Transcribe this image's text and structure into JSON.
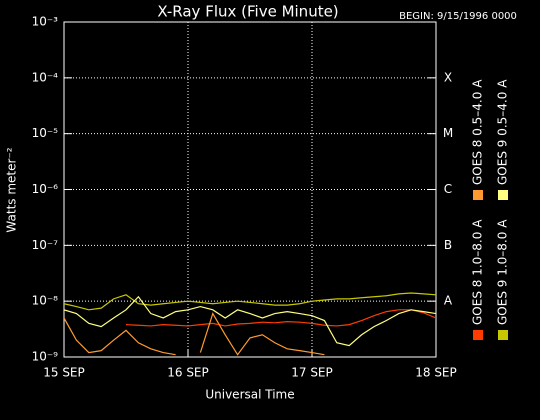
{
  "chart_data": {
    "type": "line",
    "title": "X-Ray Flux (Five Minute)",
    "subtitle": "BEGIN: 9/15/1996 0000",
    "y_label": "Watts meter⁻²",
    "x_label": "Universal Time",
    "log_y": true,
    "grid": true,
    "legend": "right",
    "ylim": [
      1e-09,
      0.001
    ],
    "yticks": [
      {
        "value": 1e-09,
        "label": "10⁻⁹"
      },
      {
        "value": 1e-08,
        "label": "10⁻⁸"
      },
      {
        "value": 1e-07,
        "label": "10⁻⁷"
      },
      {
        "value": 1e-06,
        "label": "10⁻⁶"
      },
      {
        "value": 1e-05,
        "label": "10⁻⁵"
      },
      {
        "value": 0.0001,
        "label": "10⁻⁴"
      },
      {
        "value": 0.001,
        "label": "10⁻³"
      }
    ],
    "flare_classes": [
      {
        "value": 1e-08,
        "label": "A"
      },
      {
        "value": 1e-07,
        "label": "B"
      },
      {
        "value": 1e-06,
        "label": "C"
      },
      {
        "value": 1e-05,
        "label": "M"
      },
      {
        "value": 0.0001,
        "label": "X"
      }
    ],
    "xlim": [
      0,
      3
    ],
    "xticks": [
      {
        "value": 0,
        "label": "15 SEP"
      },
      {
        "value": 1,
        "label": "16 SEP"
      },
      {
        "value": 2,
        "label": "17 SEP"
      },
      {
        "value": 3,
        "label": "18 SEP"
      }
    ],
    "x": [
      0,
      0.1,
      0.2,
      0.3,
      0.4,
      0.5,
      0.6,
      0.7,
      0.8,
      0.9,
      1,
      1.1,
      1.2,
      1.3,
      1.4,
      1.5,
      1.6,
      1.7,
      1.8,
      1.9,
      2,
      2.1,
      2.2,
      2.3,
      2.4,
      2.5,
      2.6,
      2.7,
      2.8,
      2.9,
      3
    ],
    "series": [
      {
        "name": "GOES 8 1.0–8.0 A",
        "color": "#ff3c00",
        "values": [
          null,
          null,
          null,
          null,
          null,
          3.8e-09,
          3.7e-09,
          3.6e-09,
          3.8e-09,
          3.7e-09,
          3.6e-09,
          3.8e-09,
          4e-09,
          3.6e-09,
          3.9e-09,
          4e-09,
          4.2e-09,
          4.1e-09,
          4.3e-09,
          4.2e-09,
          4e-09,
          3.7e-09,
          3.6e-09,
          3.8e-09,
          4.5e-09,
          5.5e-09,
          6.5e-09,
          7e-09,
          7e-09,
          6.2e-09,
          5e-09
        ]
      },
      {
        "name": "GOES 8 0.5–4.0 A",
        "color": "#ff9a30",
        "values": [
          5e-09,
          2e-09,
          1.2e-09,
          1.3e-09,
          2e-09,
          3e-09,
          1.8e-09,
          1.4e-09,
          1.2e-09,
          1.1e-09,
          null,
          1.2e-09,
          6e-09,
          2.5e-09,
          1.1e-09,
          2.2e-09,
          2.5e-09,
          1.8e-09,
          1.4e-09,
          1.3e-09,
          1.2e-09,
          1.1e-09,
          null,
          null,
          null,
          1.05e-09,
          null,
          null,
          null,
          null,
          null
        ]
      },
      {
        "name": "GOES 9 1.0–8.0 A",
        "color": "#c8c800",
        "values": [
          9e-09,
          8e-09,
          7e-09,
          7.5e-09,
          1.1e-08,
          1.3e-08,
          9e-09,
          8.5e-09,
          9e-09,
          9.5e-09,
          1e-08,
          9.5e-09,
          9e-09,
          9.5e-09,
          1e-08,
          9.5e-09,
          9e-09,
          8.5e-09,
          8.5e-09,
          9e-09,
          1e-08,
          1.05e-08,
          1.1e-08,
          1.1e-08,
          1.15e-08,
          1.2e-08,
          1.25e-08,
          1.35e-08,
          1.4e-08,
          1.35e-08,
          1.3e-08
        ]
      },
      {
        "name": "GOES 9 0.5–4.0 A",
        "color": "#ffff80",
        "values": [
          7e-09,
          6e-09,
          4e-09,
          3.5e-09,
          5e-09,
          7e-09,
          1.2e-08,
          6e-09,
          5e-09,
          6.5e-09,
          7e-09,
          8e-09,
          7e-09,
          5e-09,
          7e-09,
          6e-09,
          5e-09,
          6e-09,
          6.5e-09,
          6e-09,
          5.5e-09,
          4.5e-09,
          1.8e-09,
          1.6e-09,
          2.5e-09,
          3.5e-09,
          4.5e-09,
          6e-09,
          7e-09,
          6.5e-09,
          6e-09
        ]
      }
    ]
  }
}
